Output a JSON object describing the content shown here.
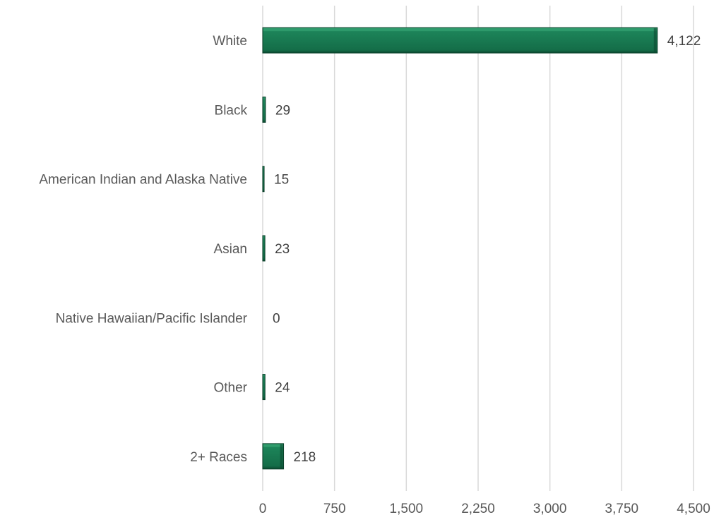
{
  "chart_data": {
    "type": "bar",
    "orientation": "horizontal",
    "categories": [
      "White",
      "Black",
      "American Indian and Alaska Native",
      "Asian",
      "Native Hawaiian/Pacific Islander",
      "Other",
      "2+ Races"
    ],
    "values": [
      4122,
      29,
      15,
      23,
      0,
      24,
      218
    ],
    "data_labels": [
      "4,122",
      "29",
      "15",
      "23",
      "0",
      "24",
      "218"
    ],
    "xlim": [
      0,
      4500
    ],
    "x_ticks": [
      0,
      750,
      1500,
      2250,
      3000,
      3750,
      4500
    ],
    "x_tick_labels": [
      "0",
      "750",
      "1,500",
      "2,250",
      "3,000",
      "3,750",
      "4,500"
    ],
    "title": "",
    "xlabel": "",
    "ylabel": "",
    "grid": "vertical",
    "legend": "none",
    "bar_color": "#17774f"
  }
}
